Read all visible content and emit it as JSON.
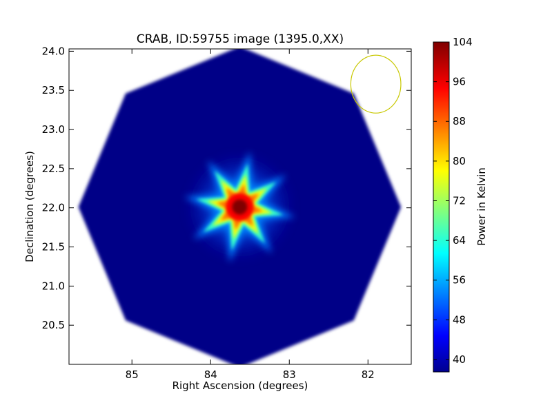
{
  "chart_data": {
    "type": "heatmap",
    "title": "CRAB, ID:59755 image (1395.0,XX)",
    "xlabel": "Right Ascension (degrees)",
    "ylabel": "Declination (degrees)",
    "xlim": [
      85.8,
      81.45
    ],
    "ylim": [
      20.0,
      24.03
    ],
    "x_ticks": [
      85,
      84,
      83,
      82
    ],
    "x_tick_labels": [
      "85",
      "84",
      "83",
      "82"
    ],
    "y_ticks": [
      20.5,
      21.0,
      21.5,
      22.0,
      22.5,
      23.0,
      23.5,
      24.0
    ],
    "y_tick_labels": [
      "20.5",
      "21.0",
      "21.5",
      "22.0",
      "22.5",
      "23.0",
      "23.5",
      "24.0"
    ],
    "colorbar": {
      "label": "Power in Kelvin",
      "range": [
        37.5,
        104
      ],
      "ticks": [
        40,
        48,
        56,
        64,
        72,
        80,
        88,
        96,
        104
      ],
      "tick_labels": [
        "40",
        "48",
        "56",
        "64",
        "72",
        "80",
        "88",
        "96",
        "104"
      ],
      "colormap": "jet"
    },
    "image": {
      "shape": "octagon",
      "center": [
        83.63,
        22.01
      ],
      "radius_deg": 2.05,
      "background_power": 38,
      "source_peak_power": 104,
      "source_arms": 8
    },
    "beam_circle": {
      "center": [
        81.9,
        23.58
      ],
      "radius_deg": 0.37,
      "color": "#c8c800"
    }
  }
}
